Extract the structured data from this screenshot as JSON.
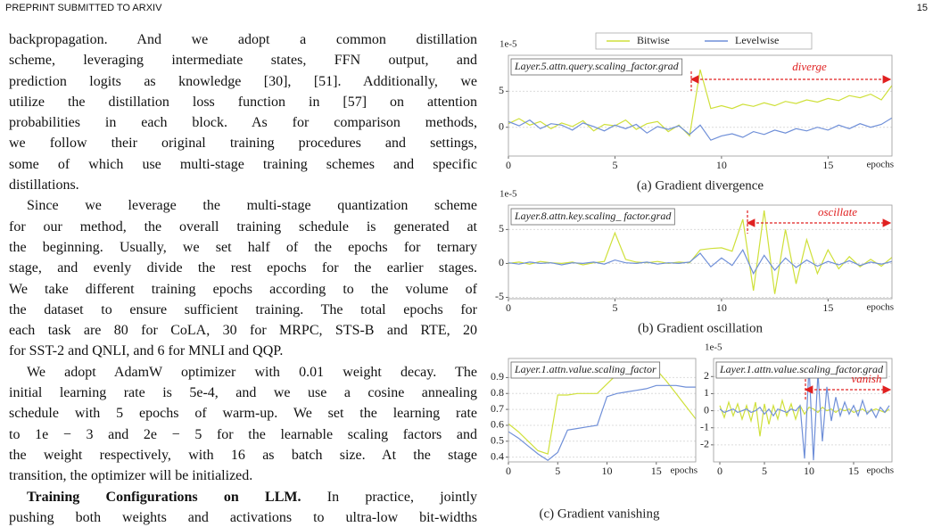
{
  "header": {
    "running_title": "PREPRINT SUBMITTED TO ARXIV",
    "page_number": "15"
  },
  "body": {
    "paragraphs": [
      {
        "lines": [
          "backpropagation. And we adopt a common distillation",
          "scheme, leveraging intermediate states, FFN output, and",
          "prediction logits as knowledge [30], [51]. Additionally, we",
          "utilize the distillation loss function in [57] on attention",
          "probabilities in each block. As for comparison methods,",
          "we follow their original training procedures and settings,",
          "some of which use multi-stage training schemes and specific",
          "distillations."
        ]
      },
      {
        "lines": [
          "Since we leverage the multi-stage quantization scheme",
          "for our method, the overall training schedule is generated at",
          "the beginning. Usually, we set half of the epochs for ternary",
          "stage, and evenly divide the rest epochs for the earlier stages.",
          "We take different training epochs according to the volume of",
          "the dataset to ensure sufficient training. The total epochs for",
          "each task are 80 for CoLA, 30 for MRPC, STS-B and RTE, 20",
          "for SST-2 and QNLI, and 6 for MNLI and QQP."
        ]
      },
      {
        "lines": [
          "We adopt AdamW optimizer with 0.01 weight decay. The",
          "initial learning rate is 5e-4, and we use a cosine annealing",
          "schedule with 5 epochs of warm-up. We set the learning rate",
          "to 1e − 3 and 2e − 5 for the learnable scaling factors and",
          "the weight respectively, with 16 as batch size. At the stage",
          "transition, the optimizer will be initialized."
        ]
      },
      {
        "heading": "Training Configurations on LLM.",
        "lines": [
          "In practice, jointly",
          "pushing both weights and activations to ultra-low bit-widths"
        ]
      }
    ]
  },
  "chart_data": [
    {
      "type": "line",
      "annotation": "Layer.5.attn.query.scaling_factor.grad",
      "event": "diverge",
      "scale_label": "1e-5",
      "x_label": "epochs",
      "caption": "(a) Gradient divergence",
      "legend": "top",
      "grid": true,
      "xlim": [
        0,
        18
      ],
      "ylim": [
        -4,
        10
      ],
      "xticks": [
        0,
        5,
        10,
        15
      ],
      "yticks": [
        0,
        5
      ],
      "x": [
        0,
        0.5,
        1,
        1.5,
        2,
        2.5,
        3,
        3.5,
        4,
        4.5,
        5,
        5.5,
        6,
        6.5,
        7,
        7.5,
        8,
        8.5,
        9,
        9.5,
        10,
        10.5,
        11,
        11.5,
        12,
        12.5,
        13,
        13.5,
        14,
        14.5,
        15,
        15.5,
        16,
        16.5,
        17,
        17.5,
        18
      ],
      "series": [
        {
          "name": "Bitwise",
          "color": "#cfe03a",
          "values": [
            0.5,
            1.2,
            0.3,
            0.8,
            -0.2,
            0.6,
            0.1,
            0.9,
            -0.5,
            0.4,
            0.2,
            1.0,
            -0.3,
            0.5,
            0.8,
            -0.6,
            0.3,
            -1.2,
            8.0,
            2.6,
            3.0,
            2.6,
            3.2,
            2.9,
            3.4,
            3.0,
            3.6,
            3.3,
            3.8,
            3.5,
            4.0,
            3.7,
            4.4,
            4.1,
            4.6,
            3.8,
            5.8
          ]
        },
        {
          "name": "Levelwise",
          "color": "#6f8fd8",
          "values": [
            0.8,
            0.2,
            1.0,
            -0.2,
            0.5,
            0.3,
            -0.4,
            0.6,
            0.1,
            -0.5,
            0.3,
            -0.2,
            0.4,
            -0.8,
            0.1,
            -0.3,
            0.2,
            -1.0,
            0.3,
            -1.8,
            -1.2,
            -0.9,
            -1.4,
            -0.6,
            -1.0,
            -0.4,
            -0.8,
            -0.2,
            -0.5,
            0.0,
            -0.4,
            0.3,
            -0.2,
            0.5,
            0.0,
            0.4,
            1.3
          ]
        }
      ]
    },
    {
      "type": "line",
      "annotation": "Layer.8.attn.key.scaling_ factor.grad",
      "event": "oscillate",
      "scale_label": "1e-5",
      "x_label": "epochs",
      "caption": "(b) Gradient oscillation",
      "grid": true,
      "xlim": [
        0,
        18
      ],
      "ylim": [
        -5.2,
        8.6
      ],
      "xticks": [
        0,
        5,
        10,
        15
      ],
      "yticks": [
        -5,
        0,
        5
      ],
      "x": [
        0,
        0.5,
        1,
        1.5,
        2,
        2.5,
        3,
        3.5,
        4,
        4.5,
        5,
        5.5,
        6,
        6.5,
        7,
        7.5,
        8,
        8.5,
        9,
        9.5,
        10,
        10.5,
        11,
        11.5,
        12,
        12.5,
        13,
        13.5,
        14,
        14.5,
        15,
        15.5,
        16,
        16.5,
        17,
        17.5,
        18
      ],
      "series": [
        {
          "name": "Bitwise",
          "color": "#cfe03a",
          "values": [
            0,
            0.2,
            -0.1,
            0.3,
            0.1,
            0.0,
            0.2,
            -0.2,
            0.1,
            0.3,
            4.5,
            0.6,
            0.2,
            0.1,
            0.3,
            0.0,
            0.2,
            0.1,
            2.0,
            2.2,
            2.3,
            1.8,
            6.5,
            -4.0,
            7.8,
            -4.5,
            5.0,
            -3.0,
            3.5,
            -1.5,
            2.0,
            -0.8,
            1.0,
            -0.5,
            0.6,
            -0.4,
            0.9
          ]
        },
        {
          "name": "Levelwise",
          "color": "#6f8fd8",
          "values": [
            0.1,
            -0.1,
            0.2,
            0.0,
            0.1,
            -0.2,
            0.1,
            0.0,
            0.2,
            -0.1,
            0.5,
            0.1,
            0.0,
            0.2,
            -0.1,
            0.1,
            0.0,
            0.2,
            1.5,
            -0.5,
            0.8,
            -0.3,
            2.0,
            -1.5,
            1.2,
            -1.0,
            0.8,
            -0.6,
            0.5,
            -0.4,
            0.3,
            -0.2,
            0.4,
            -0.3,
            0.2,
            -0.1,
            0.3
          ]
        }
      ]
    },
    {
      "type": "line",
      "annotation": "Layer.1.attn.value.scaling_factor",
      "x_label": "epochs",
      "caption": "(c) Gradient vanishing",
      "grid": true,
      "xlim": [
        0,
        19
      ],
      "ylim": [
        0.37,
        1.02
      ],
      "xticks": [
        0,
        5,
        10,
        15
      ],
      "yticks": [
        0.4,
        0.5,
        0.6,
        0.7,
        0.8,
        0.9
      ],
      "x": [
        0,
        1,
        2,
        3,
        4,
        5,
        6,
        7,
        8,
        9,
        10,
        11,
        12,
        13,
        14,
        15,
        16,
        17,
        18,
        19
      ],
      "series": [
        {
          "name": "Bitwise",
          "color": "#cfe03a",
          "values": [
            0.61,
            0.56,
            0.5,
            0.44,
            0.42,
            0.79,
            0.79,
            0.8,
            0.8,
            0.8,
            0.86,
            0.92,
            0.95,
            0.97,
            0.98,
            0.95,
            0.88,
            0.8,
            0.72,
            0.64
          ]
        },
        {
          "name": "Levelwise",
          "color": "#6f8fd8",
          "values": [
            0.56,
            0.52,
            0.47,
            0.42,
            0.38,
            0.43,
            0.57,
            0.58,
            0.59,
            0.6,
            0.78,
            0.8,
            0.81,
            0.82,
            0.83,
            0.85,
            0.85,
            0.85,
            0.84,
            0.84
          ]
        }
      ]
    },
    {
      "type": "line",
      "annotation": "Layer.1.attn.value.scaling_factor.grad",
      "event": "vanish",
      "scale_label": "1e-5",
      "x_label": "epochs",
      "grid": true,
      "xlim": [
        -0.7,
        19.3
      ],
      "ylim": [
        -3,
        3.06
      ],
      "xticks": [
        0,
        5,
        10,
        15
      ],
      "yticks": [
        -2,
        -1,
        0,
        1,
        2
      ],
      "x": [
        0,
        0.5,
        1,
        1.5,
        2,
        2.5,
        3,
        3.5,
        4,
        4.5,
        5,
        5.5,
        6,
        6.5,
        7,
        7.5,
        8,
        8.5,
        9,
        9.5,
        10,
        10.5,
        11,
        11.5,
        12,
        12.5,
        13,
        13.5,
        14,
        14.5,
        15,
        15.5,
        16,
        16.5,
        17,
        17.5,
        18,
        18.5,
        19
      ],
      "series": [
        {
          "name": "Bitwise",
          "color": "#cfe03a",
          "values": [
            0.3,
            -0.4,
            0.5,
            -0.3,
            0.4,
            -0.5,
            0.3,
            -0.6,
            0.5,
            -1.5,
            0.4,
            -0.8,
            0.3,
            -0.5,
            0.6,
            -0.3,
            0.4,
            -0.5,
            0.3,
            -0.2,
            0.2,
            0.1,
            -0.1,
            0.2,
            0.0,
            0.1,
            -0.1,
            0.1,
            0.0,
            0.1,
            -0.1,
            0.0,
            0.1,
            -0.1,
            0.0,
            0.1,
            0.0,
            -0.1,
            0.1
          ]
        },
        {
          "name": "Levelwise",
          "color": "#6f8fd8",
          "values": [
            0.1,
            -0.1,
            0.0,
            0.1,
            -0.1,
            0.0,
            0.1,
            -0.1,
            0.0,
            0.2,
            -0.2,
            0.1,
            -0.3,
            0.1,
            0.0,
            -0.1,
            0.1,
            0.0,
            0.3,
            -2.8,
            2.6,
            -2.9,
            2.2,
            -1.8,
            1.4,
            -0.6,
            0.8,
            -0.3,
            0.5,
            -0.2,
            0.3,
            -0.3,
            0.6,
            -0.2,
            0.1,
            -0.4,
            0.2,
            -0.1,
            0.3
          ]
        }
      ]
    }
  ]
}
